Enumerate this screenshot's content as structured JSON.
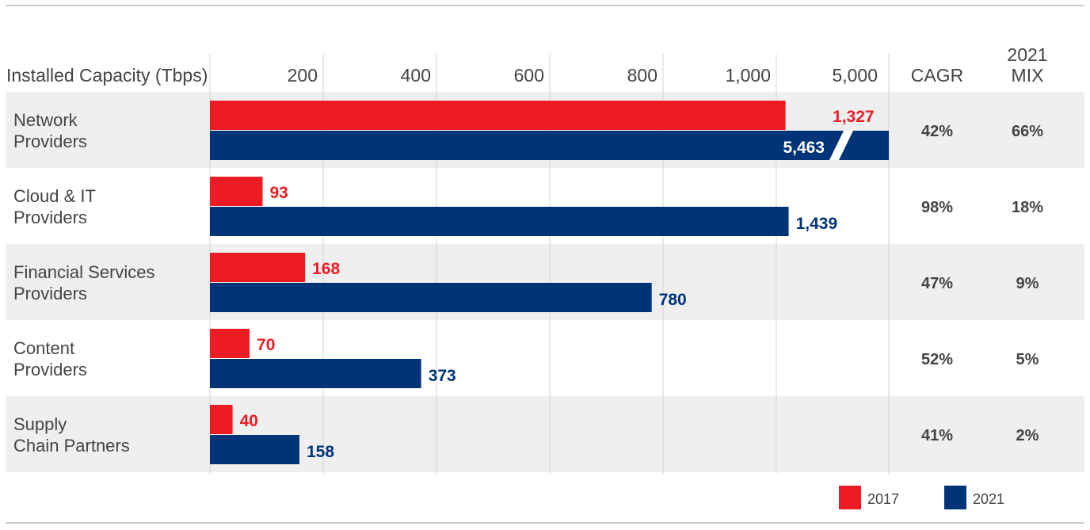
{
  "chart_data": {
    "type": "bar",
    "orientation": "horizontal",
    "title": "",
    "xlabel": "Installed Capacity (Tbps)",
    "x_ticks": [
      "200",
      "400",
      "600",
      "800",
      "1,000",
      "5,000"
    ],
    "axis_break": "between 1,000 and 5,000",
    "categories": [
      [
        "Network",
        "Providers"
      ],
      [
        "Cloud & IT",
        "Providers"
      ],
      [
        "Financial Services",
        "Providers"
      ],
      [
        "Content",
        "Providers"
      ],
      [
        "Supply",
        "Chain Partners"
      ]
    ],
    "series": [
      {
        "name": "2017",
        "color": "#ed1c24",
        "values": [
          1327,
          93,
          168,
          70,
          40
        ],
        "labels": [
          "1,327",
          "93",
          "168",
          "70",
          "40"
        ]
      },
      {
        "name": "2021",
        "color": "#003478",
        "values": [
          5463,
          1439,
          780,
          373,
          158
        ],
        "labels": [
          "5,463",
          "1,439",
          "780",
          "373",
          "158"
        ]
      }
    ],
    "table_columns": [
      {
        "header": [
          "CAGR"
        ],
        "values": [
          "42%",
          "98%",
          "47%",
          "52%",
          "41%"
        ]
      },
      {
        "header": [
          "2021",
          "MIX"
        ],
        "values": [
          "66%",
          "18%",
          "9%",
          "5%",
          "2%"
        ]
      }
    ],
    "legend": {
      "position": "bottom-right",
      "entries": [
        "2017",
        "2021"
      ]
    }
  }
}
